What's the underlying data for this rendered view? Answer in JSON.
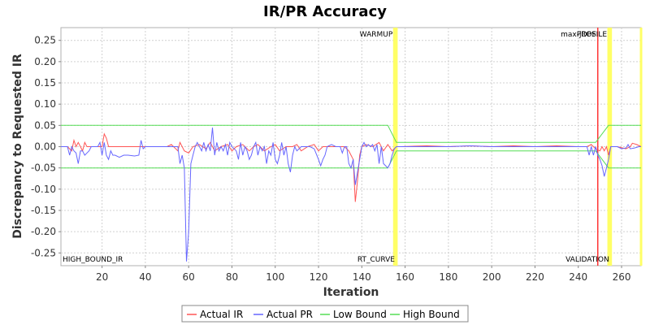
{
  "chart_data": {
    "type": "line",
    "title": "IR/PR Accuracy",
    "xlabel": "Iteration",
    "ylabel": "Discrepancy to Requested IR",
    "xlim": [
      1,
      269
    ],
    "ylim": [
      -0.28,
      0.28
    ],
    "x_ticks": [
      20,
      40,
      60,
      80,
      100,
      120,
      140,
      160,
      180,
      200,
      220,
      240,
      260
    ],
    "y_ticks": [
      -0.25,
      -0.2,
      -0.15,
      -0.1,
      -0.05,
      0.0,
      0.05,
      0.1,
      0.15,
      0.2,
      0.25
    ],
    "y_tick_labels": [
      "-0.25",
      "-0.20",
      "-0.15",
      "-0.10",
      "-0.05",
      "0.00",
      "0.05",
      "0.10",
      "0.15",
      "0.20",
      "0.25"
    ],
    "grid": true,
    "legend_position": "bottom",
    "series": [
      {
        "name": "Actual IR",
        "color": "#ff5555",
        "points": [
          [
            1,
            0
          ],
          [
            4,
            0
          ],
          [
            6,
            -0.01
          ],
          [
            7,
            0.015
          ],
          [
            8,
            0
          ],
          [
            9,
            0.01
          ],
          [
            10,
            0
          ],
          [
            11,
            -0.01
          ],
          [
            12,
            0.01
          ],
          [
            13,
            0
          ],
          [
            15,
            0
          ],
          [
            20,
            0
          ],
          [
            21,
            0.03
          ],
          [
            22,
            0.02
          ],
          [
            23,
            0
          ],
          [
            25,
            0
          ],
          [
            30,
            0
          ],
          [
            40,
            0
          ],
          [
            45,
            0
          ],
          [
            50,
            0
          ],
          [
            52,
            0.005
          ],
          [
            55,
            -0.01
          ],
          [
            56,
            0.01
          ],
          [
            58,
            -0.01
          ],
          [
            60,
            -0.015
          ],
          [
            62,
            0
          ],
          [
            65,
            0.005
          ],
          [
            68,
            -0.005
          ],
          [
            70,
            0.01
          ],
          [
            72,
            -0.01
          ],
          [
            75,
            0
          ],
          [
            78,
            0.005
          ],
          [
            80,
            -0.01
          ],
          [
            82,
            0
          ],
          [
            85,
            0.005
          ],
          [
            88,
            -0.01
          ],
          [
            90,
            0
          ],
          [
            92,
            0.005
          ],
          [
            95,
            -0.01
          ],
          [
            98,
            0
          ],
          [
            100,
            0.005
          ],
          [
            102,
            -0.01
          ],
          [
            105,
            0
          ],
          [
            108,
            0
          ],
          [
            110,
            0.005
          ],
          [
            112,
            -0.01
          ],
          [
            115,
            0
          ],
          [
            118,
            0.005
          ],
          [
            120,
            -0.01
          ],
          [
            122,
            0
          ],
          [
            125,
            0
          ],
          [
            128,
            0
          ],
          [
            130,
            0
          ],
          [
            132,
            0
          ],
          [
            134,
            -0.01
          ],
          [
            135,
            -0.02
          ],
          [
            136,
            -0.03
          ],
          [
            137,
            -0.13
          ],
          [
            138,
            -0.08
          ],
          [
            139,
            -0.02
          ],
          [
            140,
            0
          ],
          [
            142,
            0.005
          ],
          [
            145,
            0
          ],
          [
            148,
            0.01
          ],
          [
            150,
            -0.01
          ],
          [
            152,
            0.005
          ],
          [
            154,
            -0.01
          ],
          [
            156,
            0
          ],
          [
            158,
            0
          ],
          [
            170,
            0.002
          ],
          [
            180,
            0
          ],
          [
            190,
            0.002
          ],
          [
            200,
            0
          ],
          [
            210,
            0.002
          ],
          [
            220,
            0
          ],
          [
            230,
            0.002
          ],
          [
            240,
            0
          ],
          [
            244,
            0
          ],
          [
            246,
            0.005
          ],
          [
            248,
            -0.005
          ],
          [
            250,
            -0.01
          ],
          [
            251,
            0
          ],
          [
            252,
            -0.01
          ],
          [
            253,
            0
          ],
          [
            254,
            -0.02
          ],
          [
            255,
            0
          ],
          [
            258,
            0
          ],
          [
            262,
            -0.005
          ],
          [
            264,
            0
          ],
          [
            265,
            0.008
          ],
          [
            267,
            0.005
          ],
          [
            269,
            0
          ]
        ]
      },
      {
        "name": "Actual PR",
        "color": "#6666ff",
        "points": [
          [
            1,
            0
          ],
          [
            4,
            0
          ],
          [
            5,
            -0.02
          ],
          [
            6,
            0
          ],
          [
            7,
            -0.01
          ],
          [
            8,
            -0.015
          ],
          [
            9,
            -0.04
          ],
          [
            10,
            -0.01
          ],
          [
            11,
            -0.01
          ],
          [
            12,
            -0.02
          ],
          [
            13,
            -0.015
          ],
          [
            14,
            -0.01
          ],
          [
            15,
            0
          ],
          [
            18,
            0
          ],
          [
            19,
            0.01
          ],
          [
            20,
            -0.02
          ],
          [
            21,
            0.01
          ],
          [
            22,
            -0.02
          ],
          [
            23,
            -0.03
          ],
          [
            24,
            -0.01
          ],
          [
            25,
            -0.02
          ],
          [
            26,
            -0.02
          ],
          [
            28,
            -0.025
          ],
          [
            30,
            -0.02
          ],
          [
            32,
            -0.02
          ],
          [
            35,
            -0.022
          ],
          [
            37,
            -0.02
          ],
          [
            38,
            0.015
          ],
          [
            39,
            -0.005
          ],
          [
            40,
            0
          ],
          [
            45,
            0
          ],
          [
            50,
            0
          ],
          [
            52,
            0
          ],
          [
            54,
            0
          ],
          [
            55,
            0
          ],
          [
            56,
            -0.04
          ],
          [
            57,
            -0.02
          ],
          [
            58,
            -0.05
          ],
          [
            59,
            -0.27
          ],
          [
            60,
            -0.2
          ],
          [
            61,
            -0.04
          ],
          [
            62,
            -0.02
          ],
          [
            63,
            0
          ],
          [
            64,
            0.01
          ],
          [
            65,
            0
          ],
          [
            66,
            -0.01
          ],
          [
            67,
            0.01
          ],
          [
            68,
            -0.01
          ],
          [
            69,
            0.005
          ],
          [
            70,
            -0.01
          ],
          [
            71,
            0.045
          ],
          [
            72,
            -0.02
          ],
          [
            73,
            0.01
          ],
          [
            74,
            -0.01
          ],
          [
            75,
            0
          ],
          [
            76,
            -0.01
          ],
          [
            77,
            0.005
          ],
          [
            78,
            -0.02
          ],
          [
            79,
            0.01
          ],
          [
            80,
            0
          ],
          [
            82,
            -0.01
          ],
          [
            83,
            -0.03
          ],
          [
            84,
            0.01
          ],
          [
            85,
            -0.02
          ],
          [
            86,
            0
          ],
          [
            87,
            -0.01
          ],
          [
            88,
            -0.03
          ],
          [
            89,
            -0.02
          ],
          [
            90,
            0
          ],
          [
            91,
            0.01
          ],
          [
            92,
            -0.02
          ],
          [
            93,
            0
          ],
          [
            94,
            -0.01
          ],
          [
            95,
            0
          ],
          [
            96,
            -0.04
          ],
          [
            97,
            -0.01
          ],
          [
            98,
            -0.02
          ],
          [
            99,
            0.01
          ],
          [
            100,
            -0.03
          ],
          [
            101,
            -0.04
          ],
          [
            102,
            -0.02
          ],
          [
            103,
            0.01
          ],
          [
            104,
            -0.02
          ],
          [
            105,
            0
          ],
          [
            106,
            -0.04
          ],
          [
            107,
            -0.06
          ],
          [
            108,
            -0.02
          ],
          [
            109,
            0
          ],
          [
            110,
            -0.01
          ],
          [
            112,
            0
          ],
          [
            114,
            0
          ],
          [
            116,
            0
          ],
          [
            118,
            -0.005
          ],
          [
            120,
            -0.03
          ],
          [
            121,
            -0.045
          ],
          [
            122,
            -0.03
          ],
          [
            123,
            -0.02
          ],
          [
            124,
            0
          ],
          [
            126,
            0.005
          ],
          [
            128,
            0
          ],
          [
            130,
            0
          ],
          [
            131,
            -0.015
          ],
          [
            132,
            0
          ],
          [
            133,
            0
          ],
          [
            134,
            -0.04
          ],
          [
            135,
            -0.05
          ],
          [
            136,
            -0.03
          ],
          [
            137,
            -0.09
          ],
          [
            138,
            -0.06
          ],
          [
            139,
            -0.03
          ],
          [
            140,
            0
          ],
          [
            141,
            0.01
          ],
          [
            142,
            0
          ],
          [
            143,
            0.005
          ],
          [
            144,
            0
          ],
          [
            145,
            0.005
          ],
          [
            146,
            -0.01
          ],
          [
            147,
            0.005
          ],
          [
            148,
            -0.04
          ],
          [
            149,
            0
          ],
          [
            150,
            -0.04
          ],
          [
            151,
            -0.045
          ],
          [
            152,
            -0.05
          ],
          [
            153,
            -0.04
          ],
          [
            154,
            -0.02
          ],
          [
            155,
            -0.005
          ],
          [
            156,
            0
          ],
          [
            158,
            0
          ],
          [
            170,
            0
          ],
          [
            180,
            0
          ],
          [
            190,
            0.002
          ],
          [
            200,
            0
          ],
          [
            210,
            0
          ],
          [
            220,
            0
          ],
          [
            230,
            0
          ],
          [
            240,
            0
          ],
          [
            244,
            0
          ],
          [
            245,
            -0.02
          ],
          [
            246,
            0
          ],
          [
            247,
            -0.02
          ],
          [
            248,
            0
          ],
          [
            249,
            -0.02
          ],
          [
            250,
            -0.03
          ],
          [
            251,
            -0.045
          ],
          [
            252,
            -0.07
          ],
          [
            253,
            -0.05
          ],
          [
            254,
            -0.03
          ],
          [
            255,
            0
          ],
          [
            258,
            0
          ],
          [
            260,
            -0.005
          ],
          [
            262,
            -0.003
          ],
          [
            263,
            0.005
          ],
          [
            264,
            -0.005
          ],
          [
            266,
            -0.003
          ],
          [
            268,
            0
          ],
          [
            269,
            0
          ]
        ]
      },
      {
        "name": "Low Bound",
        "color": "#55dd55",
        "points": [
          [
            1,
            -0.05
          ],
          [
            152,
            -0.05
          ],
          [
            156,
            -0.01
          ],
          [
            248,
            -0.01
          ],
          [
            254,
            -0.05
          ],
          [
            269,
            -0.05
          ]
        ]
      },
      {
        "name": "High Bound",
        "color": "#55dd55",
        "points": [
          [
            1,
            0.05
          ],
          [
            152,
            0.05
          ],
          [
            156,
            0.01
          ],
          [
            248,
            0.01
          ],
          [
            254,
            0.05
          ],
          [
            269,
            0.05
          ]
        ]
      }
    ],
    "markers": [
      {
        "label": "WARMUP",
        "x": 155,
        "color": "#ffff66",
        "label_position": "top"
      },
      {
        "label": "RT_CURVE",
        "x": 156,
        "color": "#ffff66",
        "label_position": "bottom"
      },
      {
        "label": "max-jOPS",
        "x": 249,
        "color": "#ff3333",
        "label_position": "top"
      },
      {
        "label": "PROFILE",
        "x": 254,
        "color": "#ffff66",
        "label_position": "top"
      },
      {
        "label": "VALIDATION",
        "x": 255,
        "color": "#ffff66",
        "label_position": "bottom"
      },
      {
        "label": "",
        "x": 269,
        "color": "#ffff66",
        "label_position": "none"
      }
    ],
    "corner_label": "HIGH_BOUND_IR"
  }
}
